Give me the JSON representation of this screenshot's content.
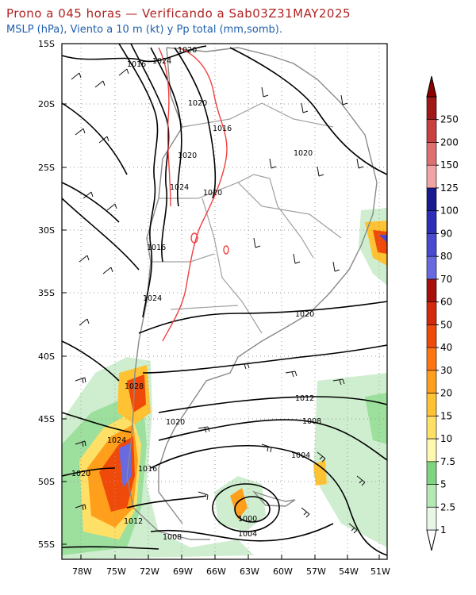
{
  "header": {
    "title": "Prono a 045 horas — Verificando a Sab03Z31MAY2025",
    "subtitle": "MSLP (hPa), Viento a 10 m (kt) y Pp total (mm,somb)."
  },
  "axes": {
    "lat_labels": [
      "15S",
      "20S",
      "25S",
      "30S",
      "35S",
      "40S",
      "45S",
      "50S",
      "55S"
    ],
    "lon_labels": [
      "78W",
      "75W",
      "72W",
      "69W",
      "66W",
      "63W",
      "60W",
      "57W",
      "54W",
      "51W"
    ]
  },
  "isobar_labels": [
    "1020",
    "1024",
    "1016",
    "1020",
    "1016",
    "1020",
    "1024",
    "1020",
    "1020",
    "1016",
    "1024",
    "1020",
    "1028",
    "1012",
    "1008",
    "1024",
    "1020",
    "1004",
    "1020",
    "1016",
    "1012",
    "1000",
    "1004",
    "1008"
  ],
  "colorbar": {
    "levels": [
      "1",
      "2.5",
      "5",
      "7.5",
      "10",
      "15",
      "20",
      "30",
      "40",
      "50",
      "60",
      "70",
      "80",
      "90",
      "100",
      "125",
      "150",
      "200",
      "250"
    ],
    "colors": [
      "#e6f7e6",
      "#b4e9b4",
      "#7fd47f",
      "#fff9b0",
      "#ffe066",
      "#ffc233",
      "#ff9f1c",
      "#ff7514",
      "#f04a0a",
      "#d22a0a",
      "#a80f0a",
      "#6a6ae0",
      "#4a4ad0",
      "#2d2db8",
      "#1a1a8f",
      "#f2a3a3",
      "#e07070",
      "#c84040",
      "#a01818"
    ]
  }
}
